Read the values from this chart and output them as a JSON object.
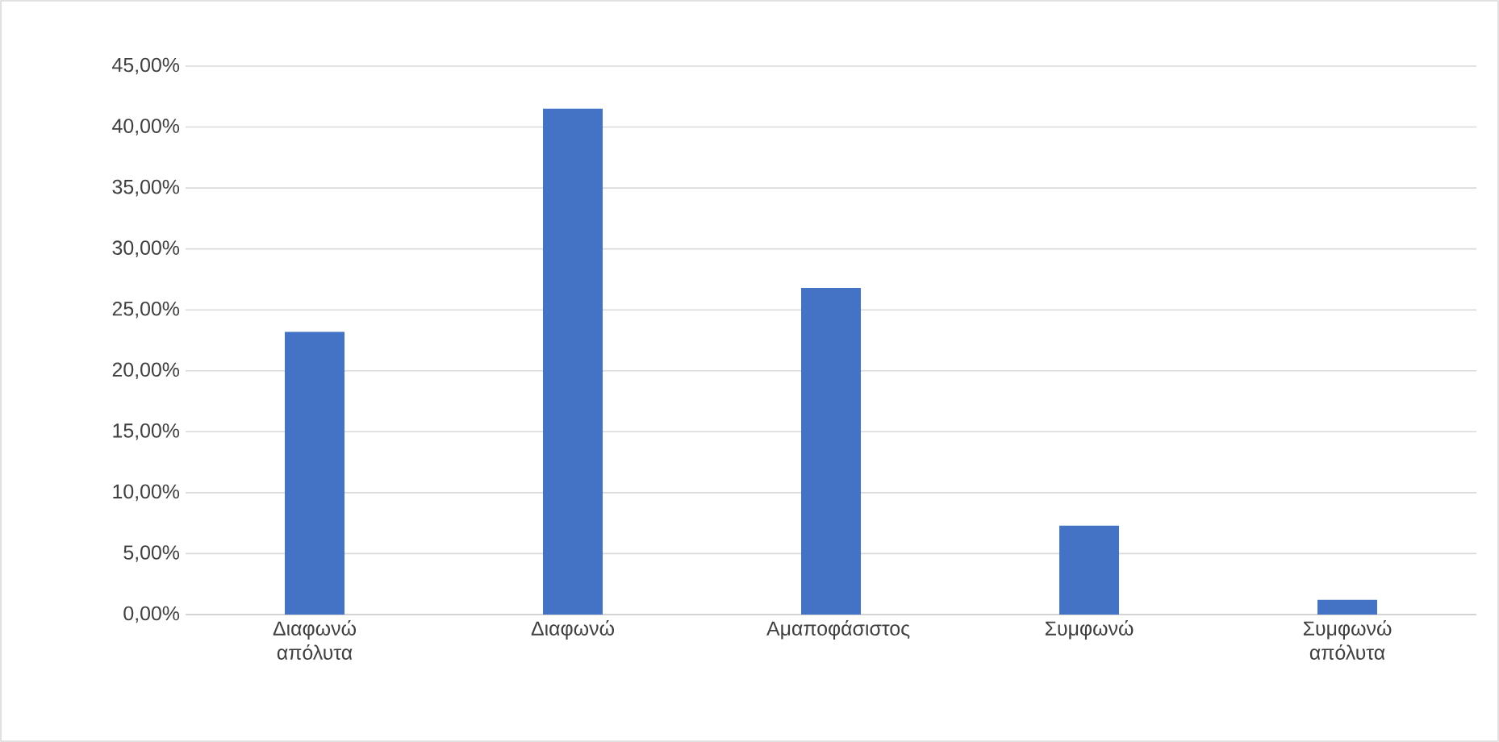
{
  "chart_data": {
    "type": "bar",
    "categories": [
      "Διαφωνώ απόλυτα",
      "Διαφωνώ",
      "Αμαποφάσιστος",
      "Συμφωνώ",
      "Συμφωνώ απόλυτα"
    ],
    "values": [
      23.2,
      41.5,
      26.8,
      7.3,
      1.2
    ],
    "color": "#4472c4",
    "ylim": [
      0,
      45
    ],
    "yticks": [
      {
        "value": 0,
        "label": "0,00%"
      },
      {
        "value": 5,
        "label": "5,00%"
      },
      {
        "value": 10,
        "label": "10,00%"
      },
      {
        "value": 15,
        "label": "15,00%"
      },
      {
        "value": 20,
        "label": "20,00%"
      },
      {
        "value": 25,
        "label": "25,00%"
      },
      {
        "value": 30,
        "label": "30,00%"
      },
      {
        "value": 35,
        "label": "35,00%"
      },
      {
        "value": 40,
        "label": "40,00%"
      },
      {
        "value": 45,
        "label": "45,00%"
      }
    ],
    "grid": "y"
  }
}
